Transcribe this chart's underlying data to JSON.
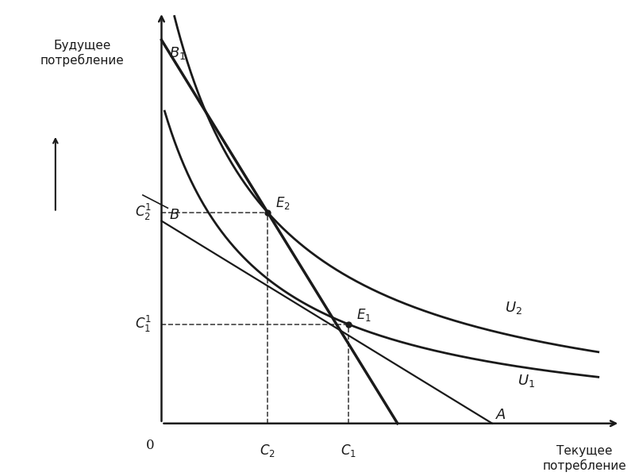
{
  "bg_color": "#ffffff",
  "line_color": "#1a1a1a",
  "E1_x": 5.5,
  "E1_y": 2.6,
  "E2_x": 4.2,
  "E2_y": 5.2,
  "B_y": 5.0,
  "B1_y": 9.2,
  "A_x": 7.8,
  "xlim": [
    0,
    10
  ],
  "ylim": [
    0,
    10
  ],
  "yax_x": 2.5,
  "xax_y": 0.3,
  "ylabel_text": "Будущее\nпотребление",
  "xlabel_text": "Текущее\nпотребление"
}
